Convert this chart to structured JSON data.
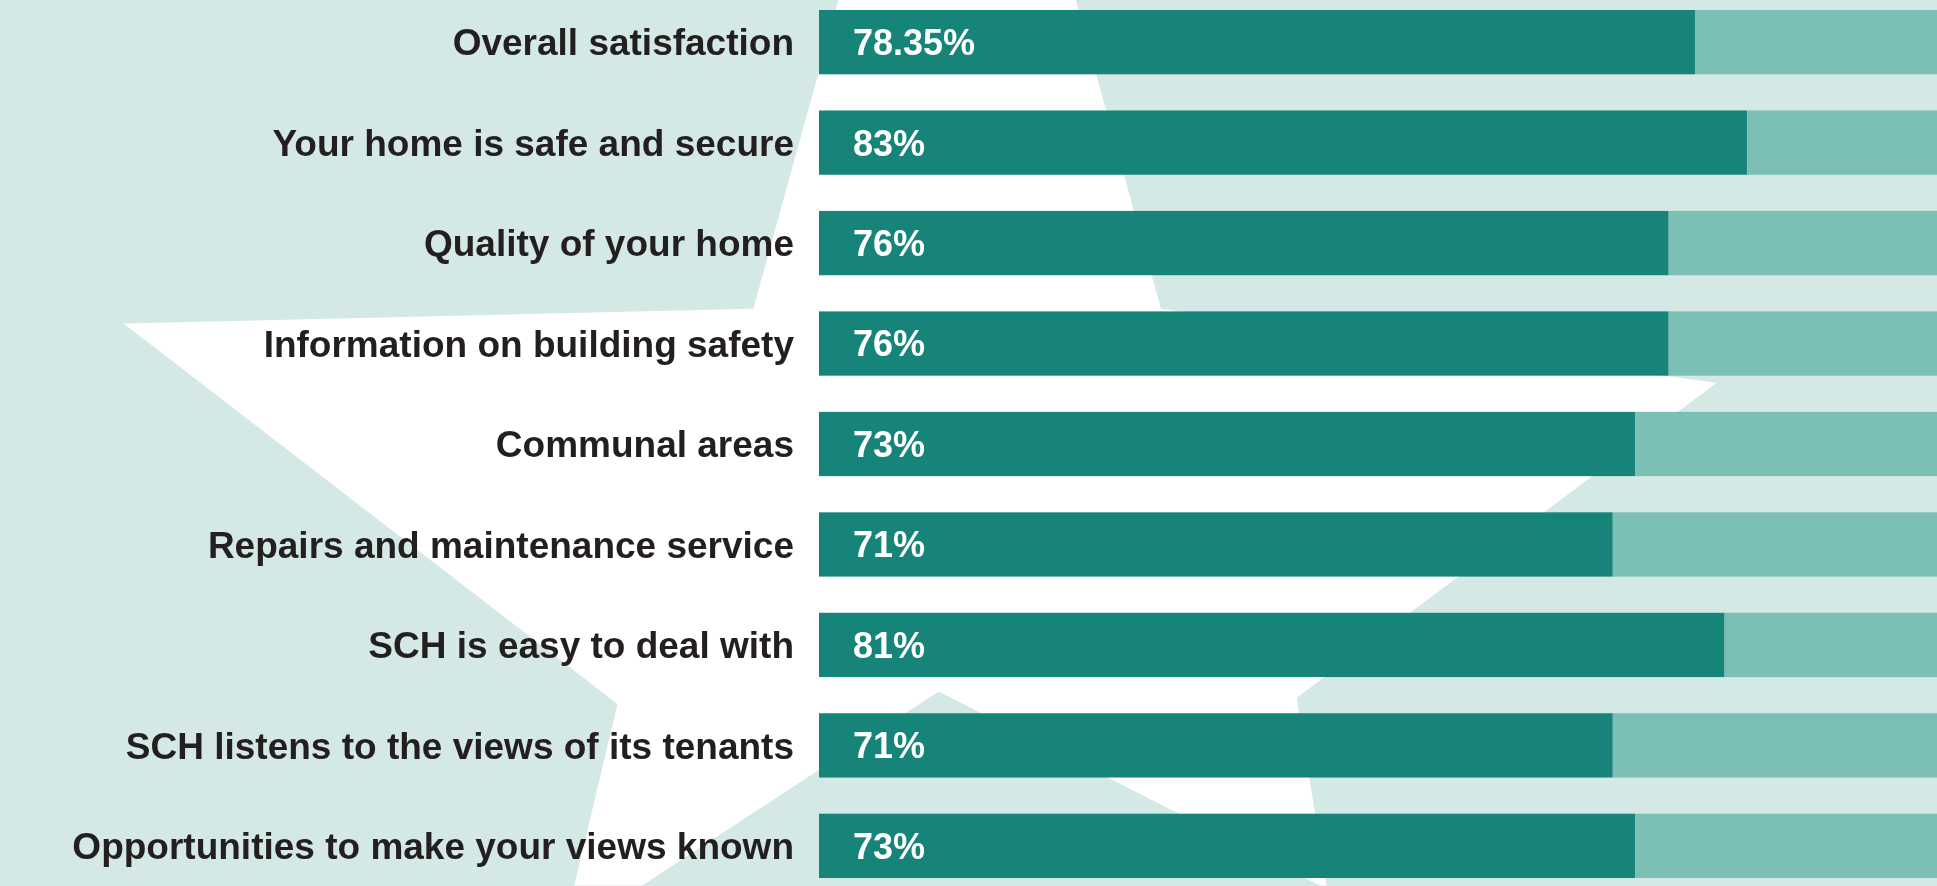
{
  "chart_data": {
    "type": "bar",
    "orientation": "horizontal",
    "stacked": true,
    "categories": [
      "Overall satisfaction",
      "Your home is safe and secure",
      "Quality of your home",
      "Information on building safety",
      "Communal areas",
      "Repairs and maintenance service",
      "SCH is easy to deal with",
      "SCH listens to the views of its tenants",
      "Opportunities to make your views known"
    ],
    "series": [
      {
        "color": "#17847a",
        "values": [
          78.35,
          83,
          76,
          76,
          73,
          71,
          81,
          71,
          73
        ],
        "value_labels": [
          "78.35%",
          "83%",
          "76%",
          "76%",
          "73%",
          "71%",
          "81%",
          "71%",
          "73%"
        ]
      },
      {
        "color": "#7bbfb5",
        "values": [
          21.65,
          17,
          24,
          24,
          27,
          29,
          19,
          29,
          27
        ]
      }
    ],
    "xlim": [
      0,
      100
    ]
  }
}
